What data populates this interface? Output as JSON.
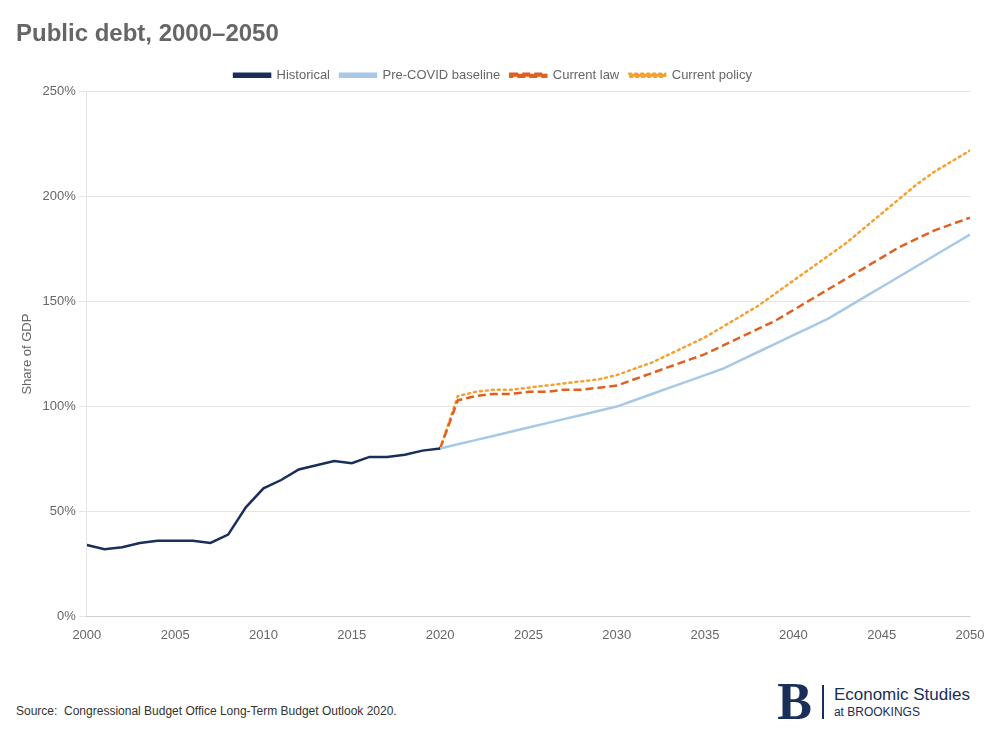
{
  "chart_data": {
    "type": "line",
    "title": "Public debt, 2000–2050",
    "y_label": "Share of GDP",
    "annotations": [
      "Source:  Congressional Budget Office Long-Term Budget Outlook 2020.",
      "B",
      "Economic Studies",
      "at BROOKINGS"
    ],
    "xlim": [
      2000,
      2050
    ],
    "xticks": [
      2000,
      2005,
      2010,
      2015,
      2020,
      2025,
      2030,
      2035,
      2040,
      2045,
      2050
    ],
    "ylim": [
      0,
      250
    ],
    "yticks": [
      {
        "value": 0,
        "label": "0%"
      },
      {
        "value": 50,
        "label": "50%"
      },
      {
        "value": 100,
        "label": "100%"
      },
      {
        "value": 150,
        "label": "150%"
      },
      {
        "value": 200,
        "label": "200%"
      },
      {
        "value": 250,
        "label": "250%"
      }
    ],
    "grid": "y",
    "legend": "top",
    "series": [
      {
        "name": "Historical",
        "color": "#1a2e5a",
        "line_style": "solid",
        "x": [
          2000,
          2001,
          2002,
          2003,
          2004,
          2005,
          2006,
          2007,
          2008,
          2009,
          2010,
          2011,
          2012,
          2013,
          2014,
          2015,
          2016,
          2017,
          2018,
          2019,
          2020
        ],
        "values": [
          34,
          32,
          33,
          35,
          36,
          36,
          36,
          35,
          39,
          52,
          61,
          65,
          70,
          72,
          74,
          73,
          76,
          76,
          77,
          79,
          80
        ]
      },
      {
        "name": "Pre-COVID baseline",
        "color": "#a8c8e8",
        "line_style": "solid",
        "x": [
          2020,
          2021,
          2022,
          2023,
          2024,
          2025,
          2026,
          2027,
          2028,
          2029,
          2030,
          2031,
          2032,
          2033,
          2034,
          2035,
          2036,
          2037,
          2038,
          2039,
          2040,
          2041,
          2042,
          2043,
          2044,
          2045,
          2046,
          2047,
          2048,
          2049,
          2050
        ],
        "values": [
          80,
          82,
          84,
          86,
          88,
          90,
          92,
          94,
          96,
          98,
          100,
          103,
          106,
          109,
          112,
          115,
          118,
          122,
          126,
          130,
          134,
          138,
          142,
          147,
          152,
          157,
          162,
          167,
          172,
          177,
          182
        ]
      },
      {
        "name": "Current law",
        "color": "#e06020",
        "line_style": "dashed",
        "x": [
          2020,
          2021,
          2022,
          2023,
          2024,
          2025,
          2026,
          2027,
          2028,
          2029,
          2030,
          2031,
          2032,
          2033,
          2034,
          2035,
          2036,
          2037,
          2038,
          2039,
          2040,
          2041,
          2042,
          2043,
          2044,
          2045,
          2046,
          2047,
          2048,
          2049,
          2050
        ],
        "values": [
          80,
          103,
          105,
          106,
          106,
          107,
          107,
          108,
          108,
          109,
          110,
          113,
          116,
          119,
          122,
          125,
          129,
          133,
          137,
          141,
          146,
          151,
          156,
          161,
          166,
          171,
          176,
          180,
          184,
          187,
          190
        ]
      },
      {
        "name": "Current policy",
        "color": "#f5a030",
        "line_style": "dotted",
        "x": [
          2020,
          2021,
          2022,
          2023,
          2024,
          2025,
          2026,
          2027,
          2028,
          2029,
          2030,
          2031,
          2032,
          2033,
          2034,
          2035,
          2036,
          2037,
          2038,
          2039,
          2040,
          2041,
          2042,
          2043,
          2044,
          2045,
          2046,
          2047,
          2048,
          2049,
          2050
        ],
        "values": [
          80,
          105,
          107,
          108,
          108,
          109,
          110,
          111,
          112,
          113,
          115,
          118,
          121,
          125,
          129,
          133,
          138,
          143,
          148,
          154,
          160,
          166,
          172,
          178,
          185,
          192,
          199,
          206,
          212,
          217,
          222
        ]
      }
    ]
  }
}
